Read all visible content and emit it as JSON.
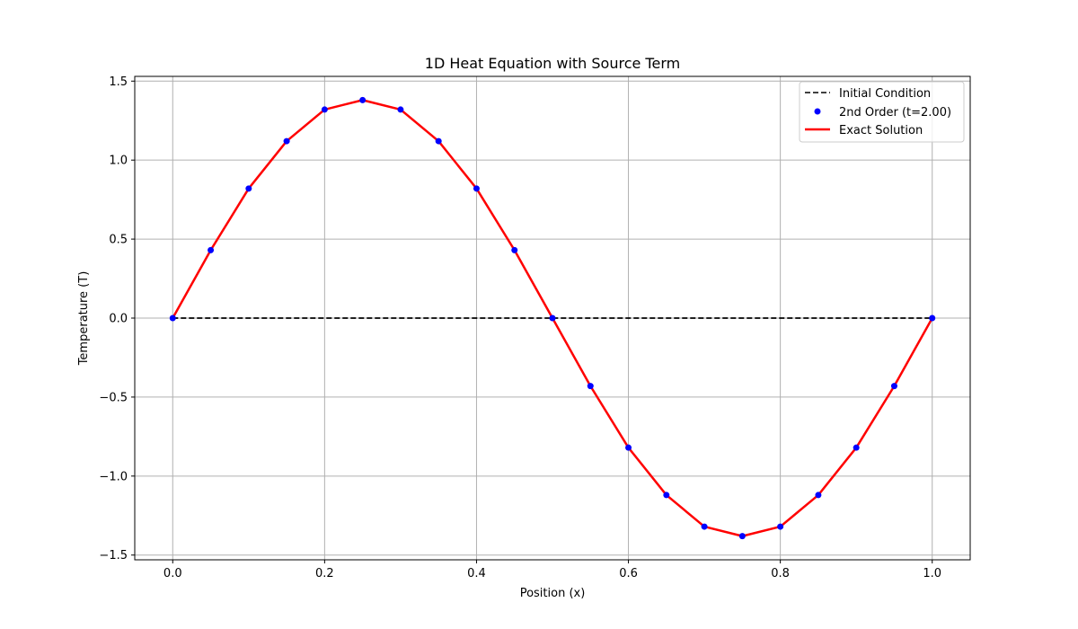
{
  "chart_data": {
    "type": "line",
    "title": "1D Heat Equation with Source Term",
    "xlabel": "Position (x)",
    "ylabel": "Temperature (T)",
    "xlim": [
      -0.05,
      1.05
    ],
    "ylim": [
      -1.53,
      1.53
    ],
    "xticks": [
      0.0,
      0.2,
      0.4,
      0.6,
      0.8,
      1.0
    ],
    "xtick_labels": [
      "0.0",
      "0.2",
      "0.4",
      "0.6",
      "0.8",
      "1.0"
    ],
    "yticks": [
      -1.5,
      -1.0,
      -0.5,
      0.0,
      0.5,
      1.0,
      1.5
    ],
    "ytick_labels": [
      "−1.5",
      "−1.0",
      "−0.5",
      "0.0",
      "0.5",
      "1.0",
      "1.5"
    ],
    "grid": true,
    "legend_position": "top-right",
    "x": [
      0.0,
      0.05,
      0.1,
      0.15,
      0.2,
      0.25,
      0.3,
      0.35,
      0.4,
      0.45,
      0.5,
      0.55,
      0.6,
      0.65,
      0.7,
      0.75,
      0.8,
      0.85,
      0.9,
      0.95,
      1.0
    ],
    "series": [
      {
        "name": "Initial Condition",
        "style": "dashed-line",
        "color": "#000000",
        "values": [
          0,
          0,
          0,
          0,
          0,
          0,
          0,
          0,
          0,
          0,
          0,
          0,
          0,
          0,
          0,
          0,
          0,
          0,
          0,
          0,
          0
        ]
      },
      {
        "name": "2nd Order (t=2.00)",
        "style": "markers",
        "color": "#0000ff",
        "values": [
          0.0,
          0.43,
          0.82,
          1.12,
          1.32,
          1.38,
          1.32,
          1.12,
          0.82,
          0.43,
          0.0,
          -0.43,
          -0.82,
          -1.12,
          -1.32,
          -1.38,
          -1.32,
          -1.12,
          -0.82,
          -0.43,
          0.0
        ]
      },
      {
        "name": "Exact Solution",
        "style": "solid-line",
        "color": "#ff0000",
        "values": [
          0.0,
          0.43,
          0.82,
          1.12,
          1.32,
          1.38,
          1.32,
          1.12,
          0.82,
          0.43,
          0.0,
          -0.43,
          -0.82,
          -1.12,
          -1.32,
          -1.38,
          -1.32,
          -1.12,
          -0.82,
          -0.43,
          0.0
        ]
      }
    ]
  }
}
